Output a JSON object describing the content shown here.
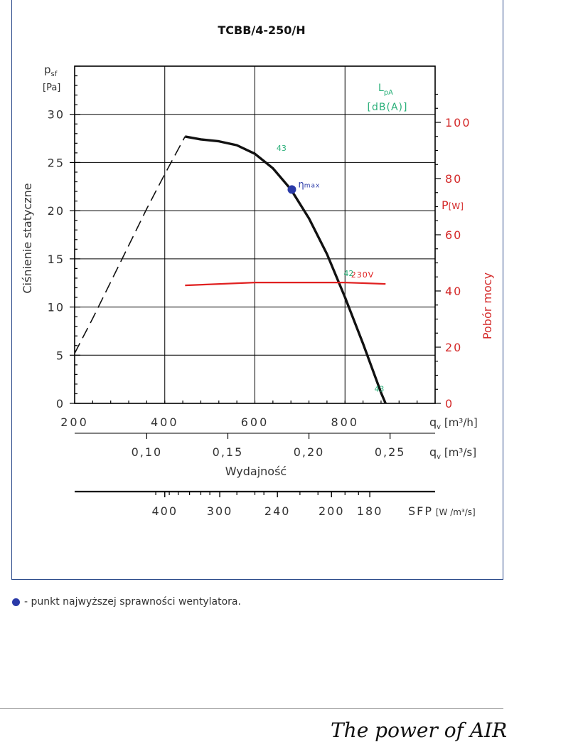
{
  "chart_data": {
    "type": "line",
    "title": "TCBB/4-250/H",
    "y_axis": {
      "label": "Ciśnienie statyczne",
      "symbol": "p",
      "symbol_sub": "sf",
      "unit": "[Pa]",
      "range": [
        0,
        35
      ],
      "ticks": [
        0,
        5,
        10,
        15,
        20,
        25,
        30
      ]
    },
    "x_axis": {
      "label": "Wydajność",
      "symbol": "q",
      "symbol_sub": "v",
      "unit": "[m³/h]",
      "range": [
        200,
        1000
      ],
      "ticks": [
        200,
        400,
        600,
        800
      ]
    },
    "x_axis_secondary": {
      "symbol": "q",
      "symbol_sub": "v",
      "unit": "[m³/s]",
      "ticks": [
        "0,10",
        "0,15",
        "0,20",
        "0,25"
      ],
      "tick_values_m3h": [
        360,
        540,
        720,
        900
      ]
    },
    "sfp_axis": {
      "label": "SFP",
      "unit": "[W /m³/s]",
      "ticks": [
        "400",
        "300",
        "240",
        "200",
        "180"
      ],
      "tick_values_m3h": [
        400,
        522,
        650,
        770,
        855
      ]
    },
    "right_axis": {
      "label": "Pobór mocy",
      "symbol": "P",
      "unit": "[W]",
      "range": [
        0,
        120
      ],
      "ticks": [
        0,
        20,
        40,
        60,
        80,
        100
      ],
      "color": "#d42a2a"
    },
    "lpa_label": "L",
    "lpa_sub": "pA",
    "lpa_unit": "[dB(A)]",
    "series": [
      {
        "kind": "pressure-dashed",
        "x": [
          200,
          240,
          280,
          320,
          360,
          400,
          430,
          445
        ],
        "y": [
          5.2,
          8.8,
          12.6,
          16.4,
          20.2,
          23.8,
          26.4,
          27.7
        ]
      },
      {
        "kind": "pressure-solid",
        "x": [
          445,
          480,
          520,
          560,
          600,
          640,
          680,
          720,
          760,
          800,
          840,
          880,
          890
        ],
        "y": [
          27.7,
          27.4,
          27.2,
          26.8,
          25.9,
          24.4,
          22.2,
          19.2,
          15.5,
          11.0,
          6.2,
          1.1,
          0
        ]
      },
      {
        "name": "230V",
        "kind": "power",
        "axis": "right",
        "x": [
          445,
          600,
          700,
          800,
          890
        ],
        "y": [
          42,
          43,
          43,
          43,
          42.5
        ]
      }
    ],
    "noise_labels": [
      {
        "text": "43",
        "x": 648,
        "y": 26.2
      },
      {
        "text": "42",
        "x": 797,
        "y": 13.2
      },
      {
        "text": "43",
        "x": 865,
        "y": 1.2
      }
    ],
    "eta_max": {
      "symbol": "η",
      "sub": "max",
      "x": 682,
      "y": 22.2
    },
    "colors": {
      "curve": "#111111",
      "power": "#e02020",
      "noise": "#2bb07a",
      "eta": "#2a3aa8",
      "frame": "#2b4a8a"
    }
  },
  "legend": {
    "text": "- punkt najwyższej sprawności wentylatora."
  },
  "brand": {
    "text": "The power of AIR"
  }
}
